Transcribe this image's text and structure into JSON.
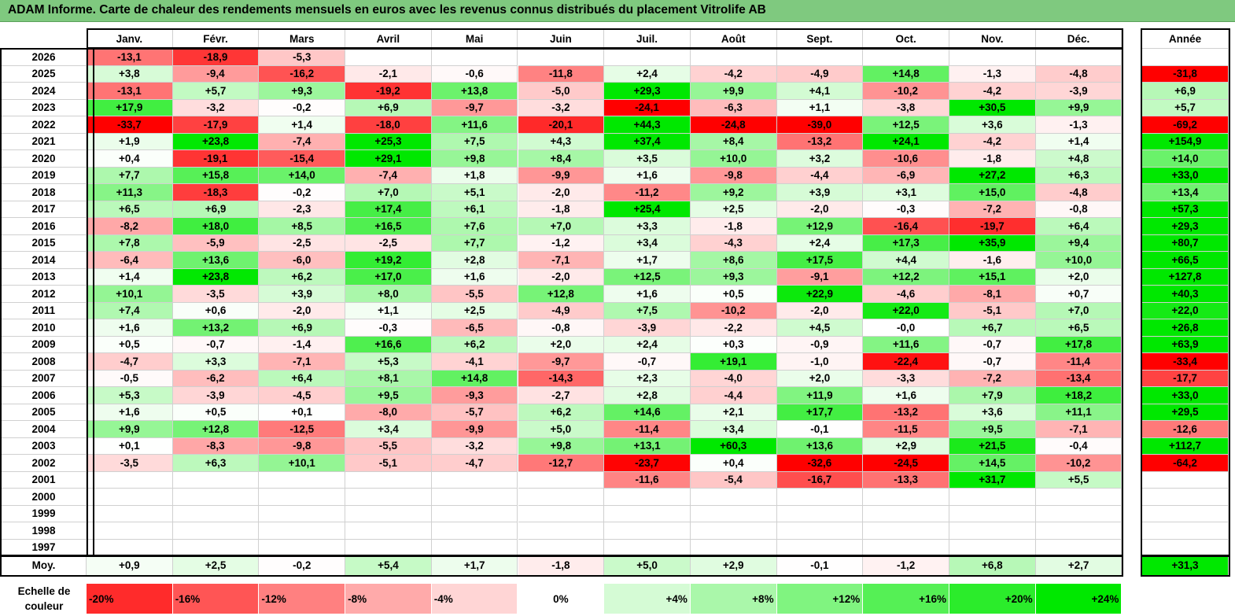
{
  "title": "ADAM Informe. Carte de chaleur des rendements mensuels en euros avec les revenus connus distribués du placement Vitrolife AB",
  "chart_data": {
    "type": "heatmap",
    "months": [
      "Janv.",
      "Févr.",
      "Mars",
      "Avril",
      "Mai",
      "Juin",
      "Juil.",
      "Août",
      "Sept.",
      "Oct.",
      "Nov.",
      "Déc."
    ],
    "year_header": "Année",
    "rows": [
      {
        "year": "2026",
        "values": [
          "-13,1",
          "-18,9",
          "-5,3",
          "",
          "",
          "",
          "",
          "",
          "",
          "",
          "",
          ""
        ],
        "annual": ""
      },
      {
        "year": "2025",
        "values": [
          "+3,8",
          "-9,4",
          "-16,2",
          "-2,1",
          "-0,6",
          "-11,8",
          "+2,4",
          "-4,2",
          "-4,9",
          "+14,8",
          "-1,3",
          "-4,8"
        ],
        "annual": "-31,8"
      },
      {
        "year": "2024",
        "values": [
          "-13,1",
          "+5,7",
          "+9,3",
          "-19,2",
          "+13,8",
          "-5,0",
          "+29,3",
          "+9,9",
          "+4,1",
          "-10,2",
          "-4,2",
          "-3,9"
        ],
        "annual": "+6,9"
      },
      {
        "year": "2023",
        "values": [
          "+17,9",
          "-3,2",
          "-0,2",
          "+6,9",
          "-9,7",
          "-3,2",
          "-24,1",
          "-6,3",
          "+1,1",
          "-3,8",
          "+30,5",
          "+9,9"
        ],
        "annual": "+5,7"
      },
      {
        "year": "2022",
        "values": [
          "-33,7",
          "-17,9",
          "+1,4",
          "-18,0",
          "+11,6",
          "-20,1",
          "+44,3",
          "-24,8",
          "-39,0",
          "+12,5",
          "+3,6",
          "-1,3"
        ],
        "annual": "-69,2"
      },
      {
        "year": "2021",
        "values": [
          "+1,9",
          "+23,8",
          "-7,4",
          "+25,3",
          "+7,5",
          "+4,3",
          "+37,4",
          "+8,4",
          "-13,2",
          "+24,1",
          "-4,2",
          "+1,4"
        ],
        "annual": "+154,9"
      },
      {
        "year": "2020",
        "values": [
          "+0,4",
          "-19,1",
          "-15,4",
          "+29,1",
          "+9,8",
          "+8,4",
          "+3,5",
          "+10,0",
          "+3,2",
          "-10,6",
          "-1,8",
          "+4,8"
        ],
        "annual": "+14,0"
      },
      {
        "year": "2019",
        "values": [
          "+7,7",
          "+15,8",
          "+14,0",
          "-7,4",
          "+1,8",
          "-9,9",
          "+1,6",
          "-9,8",
          "-4,4",
          "-6,9",
          "+27,2",
          "+6,3"
        ],
        "annual": "+33,0"
      },
      {
        "year": "2018",
        "values": [
          "+11,3",
          "-18,3",
          "-0,2",
          "+7,0",
          "+5,1",
          "-2,0",
          "-11,2",
          "+9,2",
          "+3,9",
          "+3,1",
          "+15,0",
          "-4,8"
        ],
        "annual": "+13,4"
      },
      {
        "year": "2017",
        "values": [
          "+6,5",
          "+6,9",
          "-2,3",
          "+17,4",
          "+6,1",
          "-1,8",
          "+25,4",
          "+2,5",
          "-2,0",
          "-0,3",
          "-7,2",
          "-0,8"
        ],
        "annual": "+57,3"
      },
      {
        "year": "2016",
        "values": [
          "-8,2",
          "+18,0",
          "+8,5",
          "+16,5",
          "+7,6",
          "+7,0",
          "+3,3",
          "-1,8",
          "+12,9",
          "-16,4",
          "-19,7",
          "+6,4"
        ],
        "annual": "+29,3"
      },
      {
        "year": "2015",
        "values": [
          "+7,8",
          "-5,9",
          "-2,5",
          "-2,5",
          "+7,7",
          "-1,2",
          "+3,4",
          "-4,3",
          "+2,4",
          "+17,3",
          "+35,9",
          "+9,4"
        ],
        "annual": "+80,7"
      },
      {
        "year": "2014",
        "values": [
          "-6,4",
          "+13,6",
          "-6,0",
          "+19,2",
          "+2,8",
          "-7,1",
          "+1,7",
          "+8,6",
          "+17,5",
          "+4,4",
          "-1,6",
          "+10,0"
        ],
        "annual": "+66,5"
      },
      {
        "year": "2013",
        "values": [
          "+1,4",
          "+23,8",
          "+6,2",
          "+17,0",
          "+1,6",
          "-2,0",
          "+12,5",
          "+9,3",
          "-9,1",
          "+12,2",
          "+15,1",
          "+2,0"
        ],
        "annual": "+127,8"
      },
      {
        "year": "2012",
        "values": [
          "+10,1",
          "-3,5",
          "+3,9",
          "+8,0",
          "-5,5",
          "+12,8",
          "+1,6",
          "+0,5",
          "+22,9",
          "-4,6",
          "-8,1",
          "+0,7"
        ],
        "annual": "+40,3"
      },
      {
        "year": "2011",
        "values": [
          "+7,4",
          "+0,6",
          "-2,0",
          "+1,1",
          "+2,5",
          "-4,9",
          "+7,5",
          "-10,2",
          "-2,0",
          "+22,0",
          "-5,1",
          "+7,0"
        ],
        "annual": "+22,0"
      },
      {
        "year": "2010",
        "values": [
          "+1,6",
          "+13,2",
          "+6,9",
          "-0,3",
          "-6,5",
          "-0,8",
          "-3,9",
          "-2,2",
          "+4,5",
          "-0,0",
          "+6,7",
          "+6,5"
        ],
        "annual": "+26,8"
      },
      {
        "year": "2009",
        "values": [
          "+0,5",
          "-0,7",
          "-1,4",
          "+16,6",
          "+6,2",
          "+2,0",
          "+2,4",
          "+0,3",
          "-0,9",
          "+11,6",
          "-0,7",
          "+17,8"
        ],
        "annual": "+63,9"
      },
      {
        "year": "2008",
        "values": [
          "-4,7",
          "+3,3",
          "-7,1",
          "+5,3",
          "-4,1",
          "-9,7",
          "-0,7",
          "+19,1",
          "-1,0",
          "-22,4",
          "-0,7",
          "-11,4"
        ],
        "annual": "-33,4"
      },
      {
        "year": "2007",
        "values": [
          "-0,5",
          "-6,2",
          "+6,4",
          "+8,1",
          "+14,8",
          "-14,3",
          "+2,3",
          "-4,0",
          "+2,0",
          "-3,3",
          "-7,2",
          "-13,4"
        ],
        "annual": "-17,7"
      },
      {
        "year": "2006",
        "values": [
          "+5,3",
          "-3,9",
          "-4,5",
          "+9,5",
          "-9,3",
          "-2,7",
          "+2,8",
          "-4,4",
          "+11,9",
          "+1,6",
          "+7,9",
          "+18,2"
        ],
        "annual": "+33,0"
      },
      {
        "year": "2005",
        "values": [
          "+1,6",
          "+0,5",
          "+0,1",
          "-8,0",
          "-5,7",
          "+6,2",
          "+14,6",
          "+2,1",
          "+17,7",
          "-13,2",
          "+3,6",
          "+11,1"
        ],
        "annual": "+29,5"
      },
      {
        "year": "2004",
        "values": [
          "+9,9",
          "+12,8",
          "-12,5",
          "+3,4",
          "-9,9",
          "+5,0",
          "-11,4",
          "+3,4",
          "-0,1",
          "-11,5",
          "+9,5",
          "-7,1"
        ],
        "annual": "-12,6"
      },
      {
        "year": "2003",
        "values": [
          "+0,1",
          "-8,3",
          "-9,8",
          "-5,5",
          "-3,2",
          "+9,8",
          "+13,1",
          "+60,3",
          "+13,6",
          "+2,9",
          "+21,5",
          "-0,4"
        ],
        "annual": "+112,7"
      },
      {
        "year": "2002",
        "values": [
          "-3,5",
          "+6,3",
          "+10,1",
          "-5,1",
          "-4,7",
          "-12,7",
          "-23,7",
          "+0,4",
          "-32,6",
          "-24,5",
          "+14,5",
          "-10,2"
        ],
        "annual": "-64,2"
      },
      {
        "year": "2001",
        "values": [
          "",
          "",
          "",
          "",
          "",
          "",
          "-11,6",
          "-5,4",
          "-16,7",
          "-13,3",
          "+31,7",
          "+5,5"
        ],
        "annual": ""
      },
      {
        "year": "2000",
        "values": [
          "",
          "",
          "",
          "",
          "",
          "",
          "",
          "",
          "",
          "",
          "",
          ""
        ],
        "annual": ""
      },
      {
        "year": "1999",
        "values": [
          "",
          "",
          "",
          "",
          "",
          "",
          "",
          "",
          "",
          "",
          "",
          ""
        ],
        "annual": ""
      },
      {
        "year": "1998",
        "values": [
          "",
          "",
          "",
          "",
          "",
          "",
          "",
          "",
          "",
          "",
          "",
          ""
        ],
        "annual": ""
      },
      {
        "year": "1997",
        "values": [
          "",
          "",
          "",
          "",
          "",
          "",
          "",
          "",
          "",
          "",
          "",
          ""
        ],
        "annual": ""
      }
    ],
    "average": {
      "label": "Moy.",
      "values": [
        "+0,9",
        "+2,5",
        "-0,2",
        "+5,4",
        "+1,7",
        "-1,8",
        "+5,0",
        "+2,9",
        "-0,1",
        "-1,2",
        "+6,8",
        "+2,7"
      ],
      "annual": "+31,3"
    },
    "scale": {
      "label_line1": "Echelle de",
      "label_line2": "couleur",
      "stops": [
        {
          "label": "-20%",
          "value": -20
        },
        {
          "label": "-16%",
          "value": -16
        },
        {
          "label": "-12%",
          "value": -12
        },
        {
          "label": "-8%",
          "value": -8
        },
        {
          "label": "-4%",
          "value": -4
        },
        {
          "label": "0%",
          "value": 0
        },
        {
          "label": "+4%",
          "value": 4
        },
        {
          "label": "+8%",
          "value": 8
        },
        {
          "label": "+12%",
          "value": 12
        },
        {
          "label": "+16%",
          "value": 16
        },
        {
          "label": "+20%",
          "value": 20
        },
        {
          "label": "+24%",
          "value": 24
        }
      ]
    },
    "colors": {
      "negative_max": "#ff0000",
      "neutral": "#ffffff",
      "positive_max": "#00e800",
      "title_bg": "#7fc97f"
    }
  }
}
